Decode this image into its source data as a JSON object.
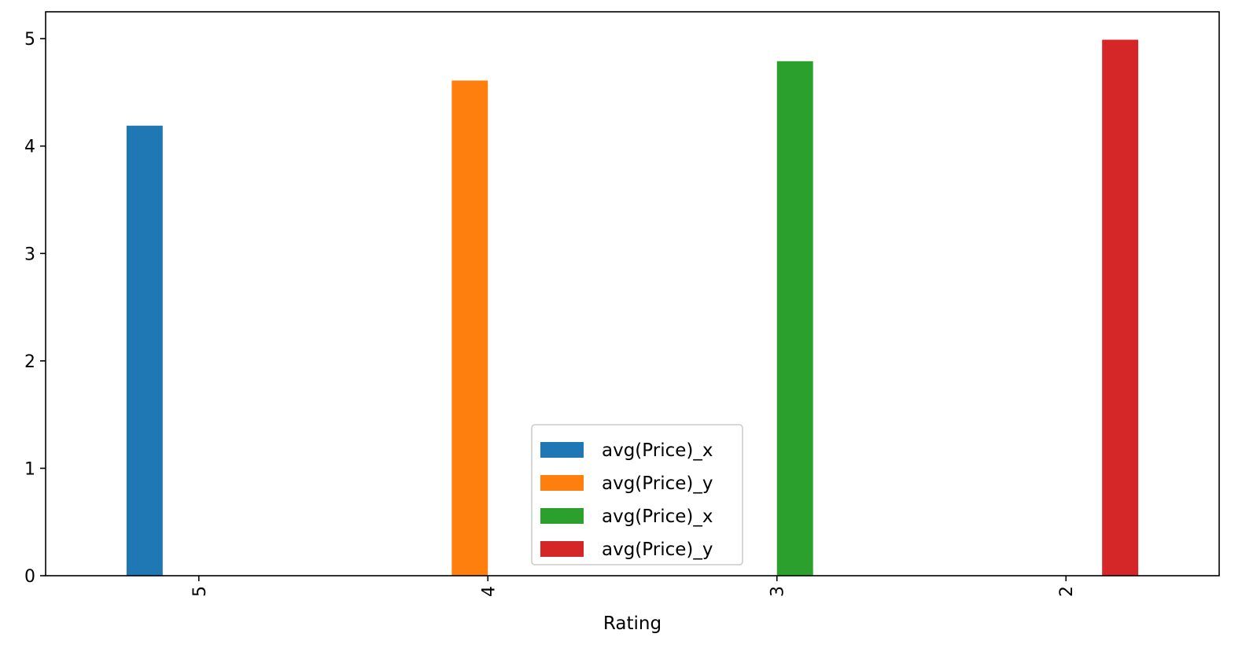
{
  "chart_data": {
    "type": "bar",
    "categories": [
      "5",
      "4",
      "3",
      "2"
    ],
    "series": [
      {
        "name": "avg(Price)_x",
        "color": "#1f77b4",
        "values": [
          4.19,
          null,
          null,
          null
        ]
      },
      {
        "name": "avg(Price)_y",
        "color": "#ff7f0e",
        "values": [
          null,
          4.61,
          null,
          null
        ]
      },
      {
        "name": "avg(Price)_x",
        "color": "#2ca02c",
        "values": [
          null,
          null,
          4.79,
          null
        ]
      },
      {
        "name": "avg(Price)_y",
        "color": "#d62728",
        "values": [
          null,
          null,
          null,
          4.99
        ]
      }
    ],
    "title": "",
    "xlabel": "Rating",
    "ylabel": "",
    "ylim": [
      0,
      5.25
    ],
    "yticks": [
      0,
      1,
      2,
      3,
      4,
      5
    ],
    "x_tick_rotation": "vertical",
    "grid": false,
    "legend_position": "lower center"
  }
}
